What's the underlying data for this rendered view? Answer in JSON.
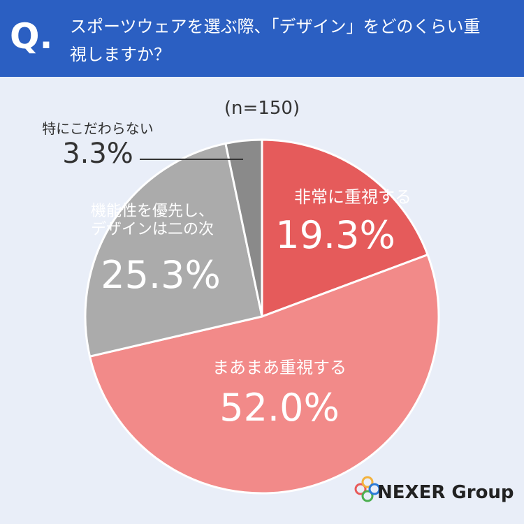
{
  "chart_data": {
    "type": "pie",
    "title_marker": "Q.",
    "title": "スポーツウェアを選ぶ際、「デザイン」をどのくらい重視しますか？",
    "subtitle": "(n=150)",
    "categories": [
      "非常に重視する",
      "まあまあ重視する",
      "機能性を優先し、デザインは二の次",
      "特にこだわらない"
    ],
    "values": [
      19.3,
      52.0,
      25.3,
      3.3
    ],
    "value_labels": [
      "19.3%",
      "52.0%",
      "25.3%",
      "3.3%"
    ],
    "colors": [
      "#e55b5b",
      "#f28a89",
      "#ababab",
      "#8a8a8a"
    ],
    "logo": "NEXER Group"
  }
}
